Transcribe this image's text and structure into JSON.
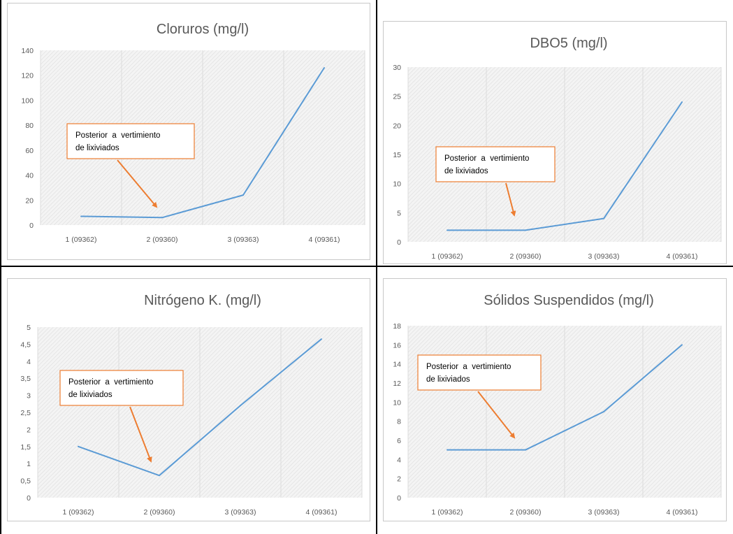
{
  "colors": {
    "series": "#5b9bd5",
    "callout": "#ed7d31",
    "text": "#595959"
  },
  "chart_data": [
    {
      "type": "line",
      "title": "Cloruros (mg/l)",
      "categories": [
        "1 (09362)",
        "2 (09360)",
        "3 (09363)",
        "4 (09361)"
      ],
      "values": [
        7,
        6,
        24,
        126
      ],
      "yticks": [
        "0",
        "20",
        "40",
        "60",
        "80",
        "100",
        "120",
        "140"
      ],
      "ylim": [
        0,
        140
      ],
      "grid": "vertical",
      "annotation": {
        "text_line1": "Posterior  a  vertimiento",
        "text_line2": "de lixiviados",
        "points_to": "2 (09360)"
      }
    },
    {
      "type": "line",
      "title": "DBO5 (mg/l)",
      "categories": [
        "1 (09362)",
        "2 (09360)",
        "3 (09363)",
        "4 (09361)"
      ],
      "values": [
        2,
        2,
        4,
        24
      ],
      "yticks": [
        "0",
        "5",
        "10",
        "15",
        "20",
        "25",
        "30"
      ],
      "ylim": [
        0,
        30
      ],
      "grid": "vertical",
      "annotation": {
        "text_line1": "Posterior  a  vertimiento",
        "text_line2": "de lixiviados",
        "points_to": "2 (09360)"
      }
    },
    {
      "type": "line",
      "title": "Nitrógeno K. (mg/l)",
      "categories": [
        "1 (09362)",
        "2 (09360)",
        "3 (09363)",
        "4 (09361)"
      ],
      "values": [
        1.5,
        0.65,
        2.7,
        4.65
      ],
      "yticks": [
        "0",
        "0,5",
        "1",
        "1,5",
        "2",
        "2,5",
        "3",
        "3,5",
        "4",
        "4,5",
        "5"
      ],
      "ylim": [
        0,
        5
      ],
      "grid": "vertical",
      "annotation": {
        "text_line1": "Posterior  a  vertimiento",
        "text_line2": "de lixiviados",
        "points_to": "2 (09360)"
      }
    },
    {
      "type": "line",
      "title": "Sólidos Suspendidos (mg/l)",
      "categories": [
        "1 (09362)",
        "2 (09360)",
        "3 (09363)",
        "4 (09361)"
      ],
      "values": [
        5,
        5,
        9,
        16
      ],
      "yticks": [
        "0",
        "2",
        "4",
        "6",
        "8",
        "10",
        "12",
        "14",
        "16",
        "18"
      ],
      "ylim": [
        0,
        18
      ],
      "grid": "vertical",
      "annotation": {
        "text_line1": "Posterior  a  vertimiento",
        "text_line2": "de lixiviados",
        "points_to": "2 (09360)"
      }
    }
  ]
}
